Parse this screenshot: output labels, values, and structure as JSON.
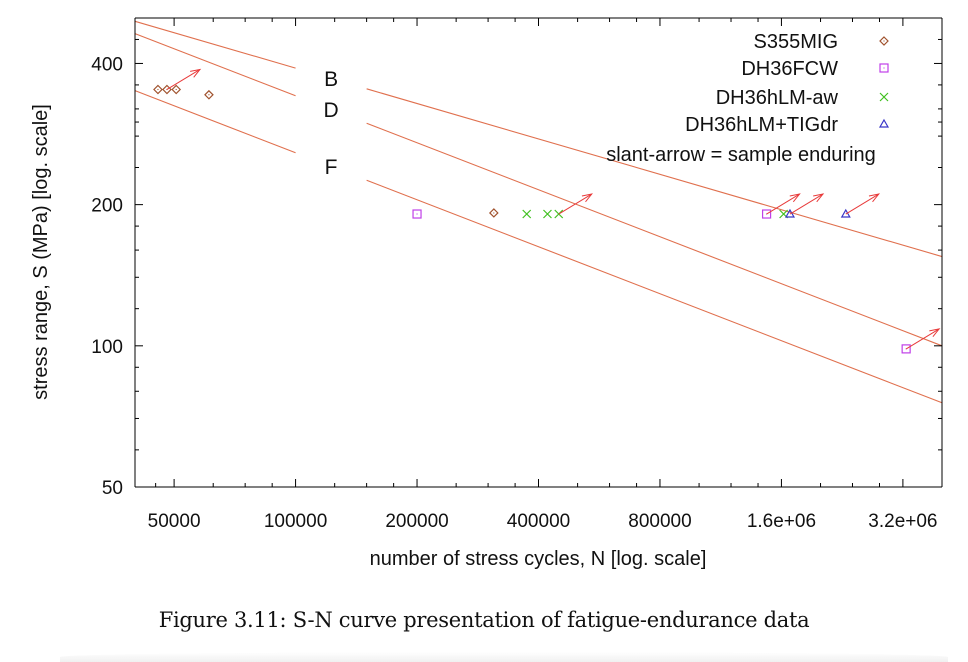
{
  "chart_data": {
    "type": "scatter",
    "title": "",
    "xlabel": "number of stress cycles, N   [log. scale]",
    "ylabel": "stress range, S (MPa)   [log. scale]",
    "xscale": "log",
    "yscale": "log",
    "xlim": [
      40000,
      4000000
    ],
    "ylim": [
      50,
      500
    ],
    "xticks": [
      {
        "value": 50000,
        "label": "50000"
      },
      {
        "value": 100000,
        "label": "100000"
      },
      {
        "value": 200000,
        "label": "200000"
      },
      {
        "value": 400000,
        "label": "400000"
      },
      {
        "value": 800000,
        "label": "800000"
      },
      {
        "value": 1600000,
        "label": "1.6e+06"
      },
      {
        "value": 3200000,
        "label": "3.2e+06"
      }
    ],
    "yticks": [
      {
        "value": 50,
        "label": "50"
      },
      {
        "value": 100,
        "label": "100"
      },
      {
        "value": 200,
        "label": "200"
      },
      {
        "value": 400,
        "label": "400"
      }
    ],
    "grid": false,
    "legend_position": "top-right",
    "curves": [
      {
        "name": "B",
        "label": "B",
        "points": [
          [
            40000,
            492
          ],
          [
            4000000,
            155
          ]
        ],
        "gap": [
          100000,
          150000
        ]
      },
      {
        "name": "D",
        "label": "D",
        "points": [
          [
            40000,
            463
          ],
          [
            4000000,
            100
          ]
        ],
        "gap": [
          100000,
          150000
        ]
      },
      {
        "name": "F",
        "label": "F",
        "points": [
          [
            40000,
            350
          ],
          [
            4000000,
            75.6
          ]
        ],
        "gap": [
          100000,
          150000
        ]
      }
    ],
    "series": [
      {
        "name": "S355MIG",
        "marker": "diamond",
        "color": "#a0522d",
        "points": [
          [
            45600,
            352
          ],
          [
            48000,
            352
          ],
          [
            50600,
            352
          ],
          [
            61000,
            343
          ],
          [
            310000,
            192
          ]
        ],
        "enduring": [
          1
        ]
      },
      {
        "name": "DH36FCW",
        "marker": "square",
        "color": "#c040e8",
        "points": [
          [
            200000,
            191
          ],
          [
            1470000,
            191
          ],
          [
            3260000,
            98.5
          ]
        ],
        "enduring": [
          1,
          2
        ]
      },
      {
        "name": "DH36hLM-aw",
        "marker": "cross",
        "color": "#40c020",
        "points": [
          [
            374000,
            191
          ],
          [
            421000,
            191
          ],
          [
            449000,
            191
          ],
          [
            1620000,
            191
          ]
        ],
        "enduring": [
          2
        ]
      },
      {
        "name": "DH36hLM+TIGdr",
        "marker": "triangle",
        "color": "#3a36c8",
        "points": [
          [
            1680000,
            191
          ],
          [
            2310000,
            191
          ]
        ],
        "enduring": [
          0,
          1
        ]
      }
    ],
    "legend_note": "slant-arrow = sample enduring",
    "colors": {
      "curve": "#e0704e",
      "arrow": "#e83a3a",
      "axis": "#000000"
    }
  },
  "caption": "Figure 3.11: S-N curve presentation of fatigue-endurance data"
}
